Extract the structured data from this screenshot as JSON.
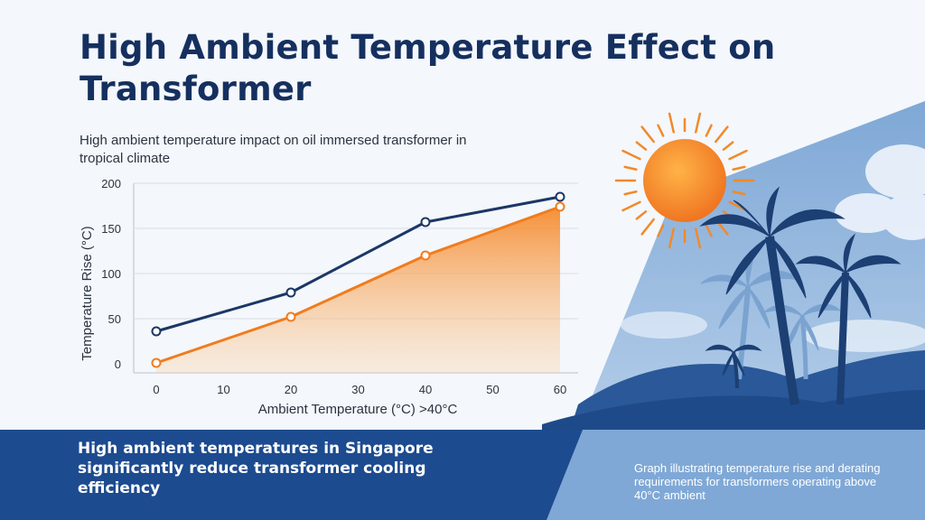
{
  "header": {
    "title": "High Ambient Temperature Effect on Transformer",
    "subtitle": "High ambient temperature impact on oil immersed transformer in tropical climate"
  },
  "banner": {
    "left_text": "High ambient temperatures in Singapore significantly reduce transformer cooling efficiency",
    "right_text": "Graph illustrating temperature rise and derating requirements for transformers operating above 40°C ambient"
  },
  "colors": {
    "accent_orange": "#f07c1e",
    "navy": "#1b3766",
    "banner_blue": "#1d4b8f",
    "sky_blue": "#a3c4e6"
  },
  "illustration": {
    "icons": [
      "sun-icon",
      "palm-tree-icon"
    ]
  },
  "chart_data": {
    "type": "line",
    "title": "",
    "xlabel": "Ambient Temperature (°C) >40°C",
    "ylabel": "Temperature Rise (°C)",
    "x_ticks": [
      0,
      10,
      20,
      30,
      40,
      50,
      60
    ],
    "y_ticks": [
      0,
      50,
      100,
      150,
      200
    ],
    "xlim": [
      0,
      60
    ],
    "ylim": [
      0,
      200
    ],
    "grid": true,
    "series": [
      {
        "x": [
          0,
          20,
          40,
          60
        ],
        "values": [
          36,
          79,
          157,
          185
        ],
        "color": "#1b3766",
        "fill": false
      },
      {
        "x": [
          0,
          20,
          40,
          60
        ],
        "values": [
          1,
          52,
          120,
          174
        ],
        "color": "#f07c1e",
        "fill": true
      }
    ]
  }
}
